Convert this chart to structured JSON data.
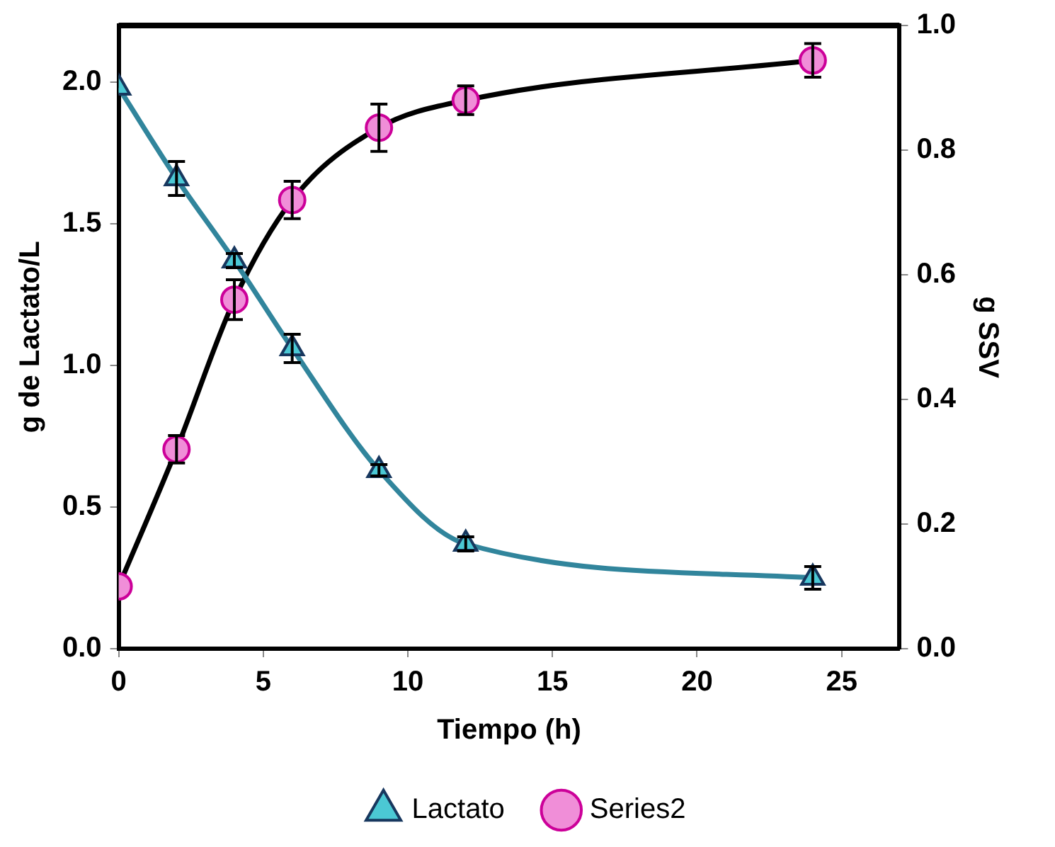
{
  "chart_data": {
    "type": "line",
    "xlabel": "Tiempo (h)",
    "ylabel": "g de Lactato/L",
    "y2label": "g SSV",
    "x": [
      0,
      2,
      4,
      6,
      9,
      12,
      24
    ],
    "series": [
      {
        "name": "Lactato",
        "color": "#31859c",
        "marker": "triangle",
        "colors": [
          "#4bc8d4",
          "#4bc8d4",
          "#4bc8d4",
          "#4bc8d4",
          "#4bc8d4",
          "#4bc8d4",
          "#4bc8d4"
        ],
        "values": [
          1.98,
          1.66,
          1.37,
          1.06,
          0.63,
          0.37,
          0.25
        ],
        "errors": [
          null,
          0.06,
          0.025,
          0.05,
          0.02,
          0.025,
          0.04
        ]
      },
      {
        "name": "Series2",
        "color": "#000000",
        "marker": "circle",
        "colors": [
          "#f08ed8",
          "#f08ed8",
          "#f08ed8",
          "#f08ed8",
          "#f08ed8",
          "#f08ed8",
          "#f08ed8"
        ],
        "axis": "y2",
        "values": [
          0.1,
          0.32,
          0.56,
          0.72,
          0.836,
          0.88,
          0.944
        ],
        "errors": [
          null,
          0.022,
          0.032,
          0.03,
          0.038,
          0.023,
          0.027
        ]
      }
    ],
    "xlim": [
      0,
      27
    ],
    "xticks": [
      0,
      5,
      10,
      15,
      20,
      25
    ],
    "ylim": [
      0,
      2.2
    ],
    "yticks": [
      {
        "value": 0,
        "label": "0.0"
      },
      {
        "value": 0.5,
        "label": "0.5"
      },
      {
        "value": 1,
        "label": "1.0"
      },
      {
        "value": 1.5,
        "label": "1.5"
      },
      {
        "value": 2,
        "label": "2.0"
      }
    ],
    "y2lim": [
      0,
      1
    ],
    "y2ticks": [
      {
        "value": 0,
        "label": "0.0"
      },
      {
        "value": 0.2,
        "label": "0.2"
      },
      {
        "value": 0.4,
        "label": "0.4"
      },
      {
        "value": 0.6,
        "label": "0.6"
      },
      {
        "value": 0.8,
        "label": "0.8"
      },
      {
        "value": 1,
        "label": "1.0"
      }
    ],
    "grid": false,
    "legend": "bottom"
  }
}
